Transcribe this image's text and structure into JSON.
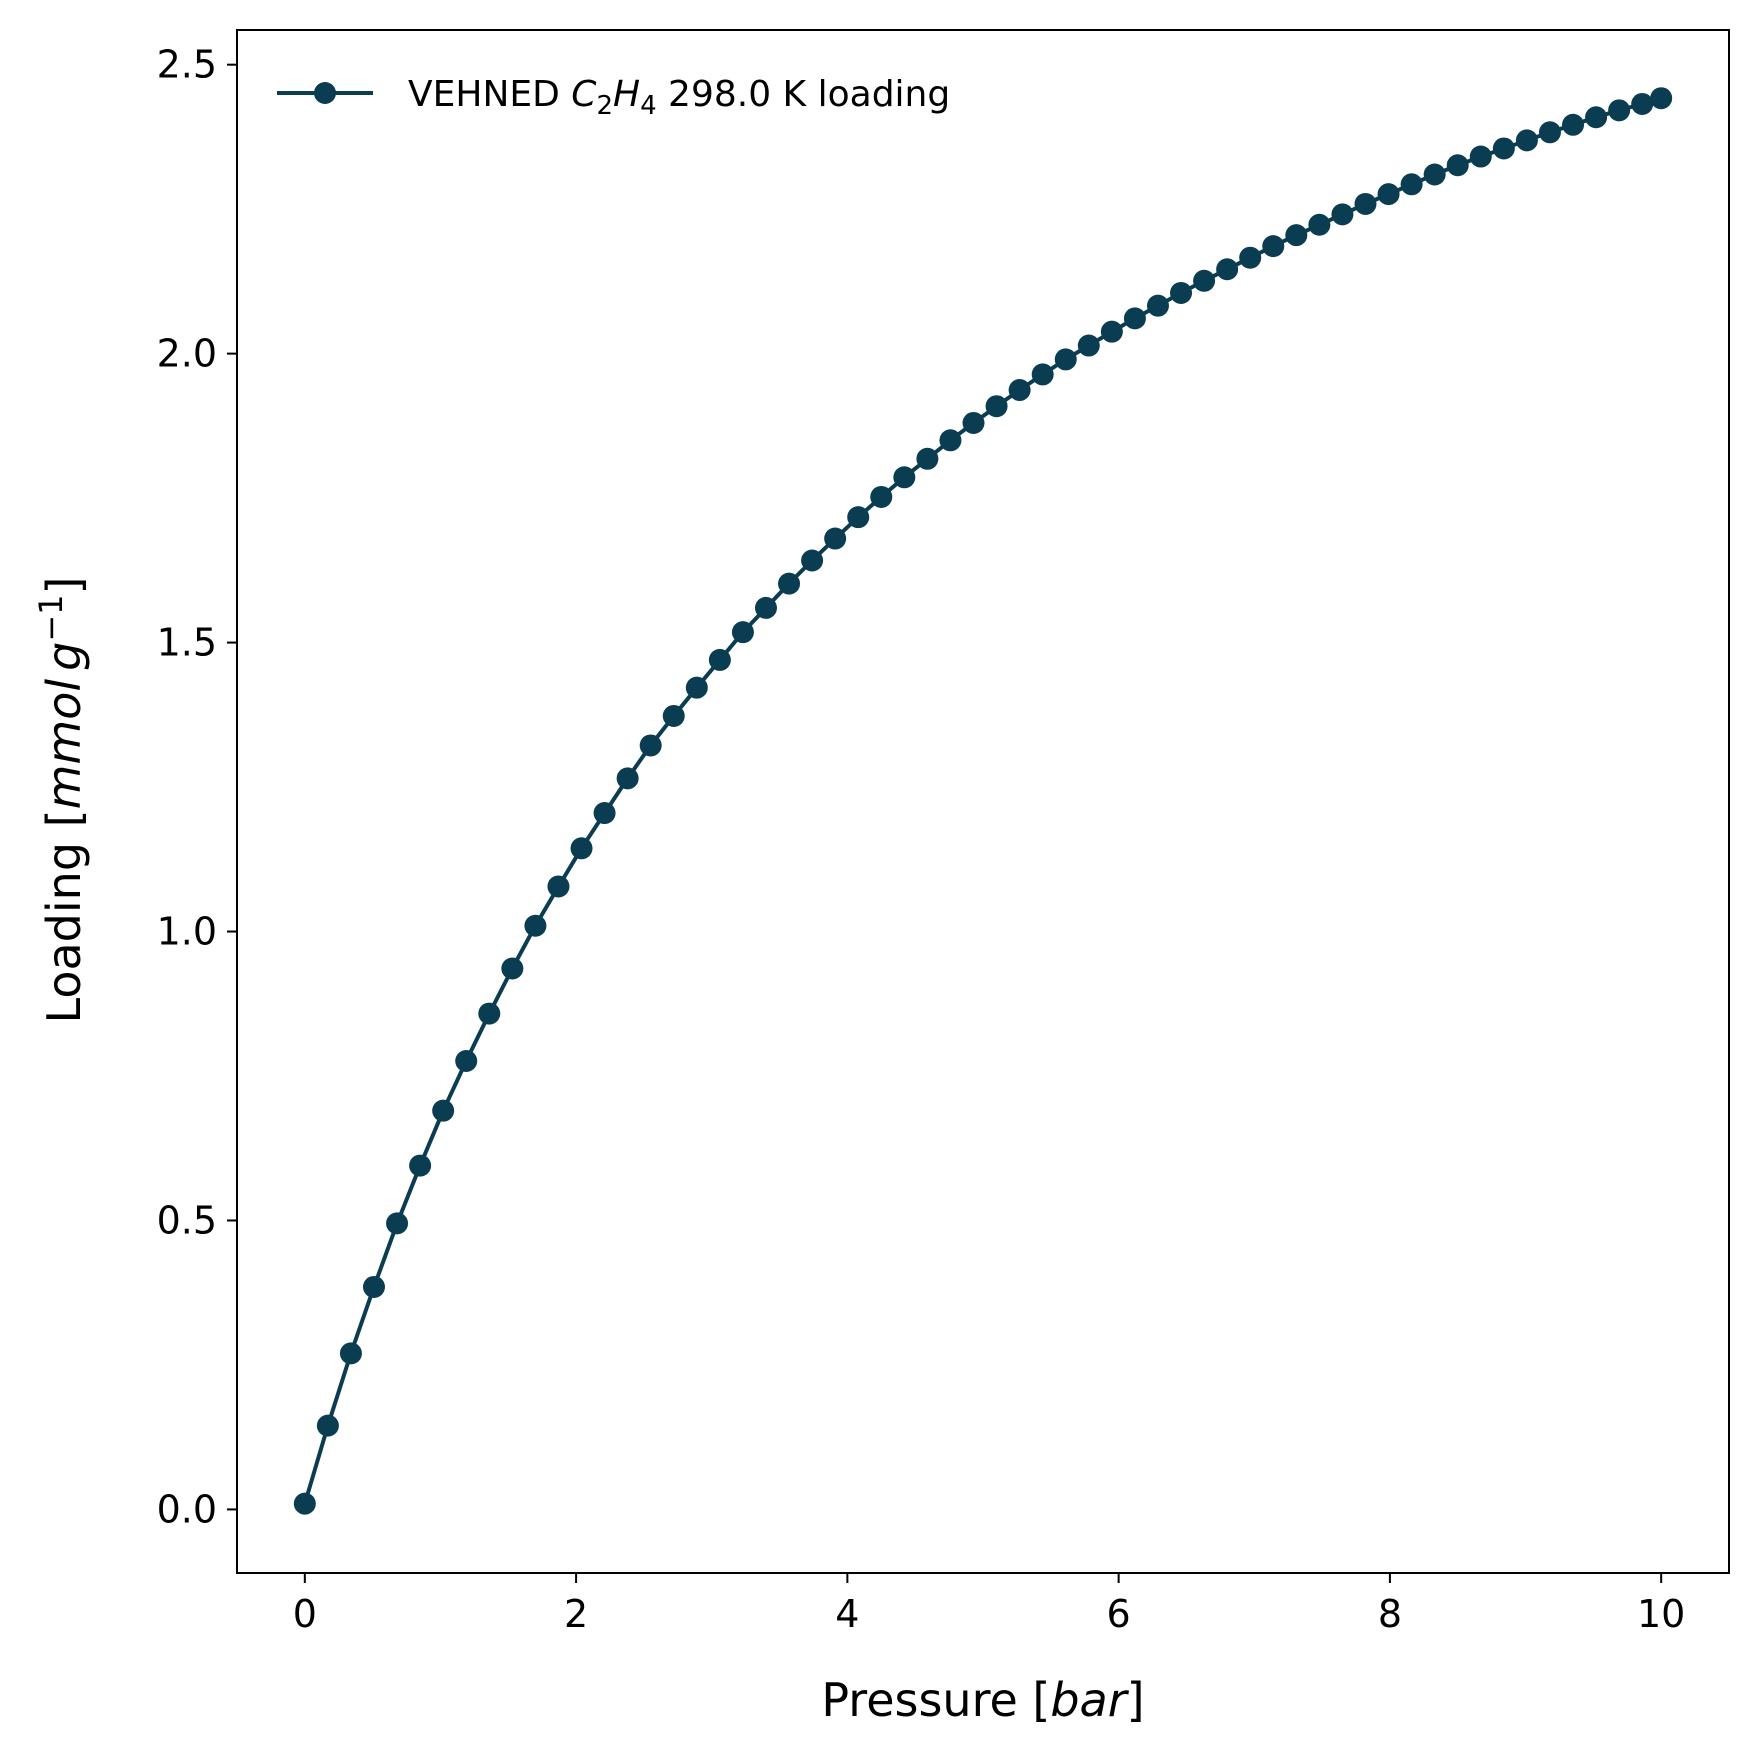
{
  "chart_data": {
    "type": "line",
    "xlabel": {
      "prefix": "Pressure [",
      "italic": "bar",
      "suffix": "]"
    },
    "ylabel": {
      "prefix": "Loading [",
      "italic_1": "mmol",
      "italic_2": "g",
      "superscript": "−1",
      "suffix": "]"
    },
    "xlim": [
      -0.5,
      10.5
    ],
    "ylim": [
      -0.11,
      2.56
    ],
    "xticks": [
      0,
      2,
      4,
      6,
      8,
      10
    ],
    "xtick_labels": [
      "0",
      "2",
      "4",
      "6",
      "8",
      "10"
    ],
    "yticks": [
      0.0,
      0.5,
      1.0,
      1.5,
      2.0,
      2.5
    ],
    "ytick_labels": [
      "0.0",
      "0.5",
      "1.0",
      "1.5",
      "2.0",
      "2.5"
    ],
    "grid": false,
    "legend": {
      "position": "top-left",
      "prefix": "VEHNED ",
      "formula_c": "C",
      "formula_c_sub": "2",
      "formula_h": "H",
      "formula_h_sub": "4",
      "suffix": " 298.0 K loading"
    },
    "color": "#0b3d52",
    "series": [
      {
        "name": "VEHNED C2H4 298.0 K loading",
        "x": [
          0.0,
          0.17,
          0.34,
          0.51,
          0.68,
          0.85,
          1.02,
          1.19,
          1.36,
          1.53,
          1.7,
          1.87,
          2.04,
          2.21,
          2.38,
          2.55,
          2.72,
          2.89,
          3.06,
          3.23,
          3.4,
          3.57,
          3.74,
          3.91,
          4.08,
          4.25,
          4.42,
          4.59,
          4.76,
          4.93,
          5.1,
          5.27,
          5.44,
          5.61,
          5.78,
          5.95,
          6.12,
          6.29,
          6.46,
          6.63,
          6.8,
          6.97,
          7.14,
          7.31,
          7.48,
          7.65,
          7.82,
          7.99,
          8.16,
          8.33,
          8.5,
          8.67,
          8.84,
          9.01,
          9.18,
          9.35,
          9.52,
          9.69,
          9.86,
          10.0
        ],
        "y": [
          0.01,
          0.145,
          0.27,
          0.385,
          0.495,
          0.595,
          0.69,
          0.776,
          0.858,
          0.936,
          1.01,
          1.078,
          1.144,
          1.205,
          1.265,
          1.322,
          1.373,
          1.422,
          1.47,
          1.518,
          1.56,
          1.602,
          1.642,
          1.68,
          1.717,
          1.752,
          1.786,
          1.818,
          1.85,
          1.88,
          1.909,
          1.937,
          1.964,
          1.99,
          2.014,
          2.038,
          2.061,
          2.083,
          2.105,
          2.126,
          2.146,
          2.166,
          2.186,
          2.205,
          2.223,
          2.241,
          2.259,
          2.276,
          2.293,
          2.31,
          2.326,
          2.341,
          2.355,
          2.369,
          2.383,
          2.396,
          2.409,
          2.421,
          2.432,
          2.442
        ]
      }
    ]
  }
}
